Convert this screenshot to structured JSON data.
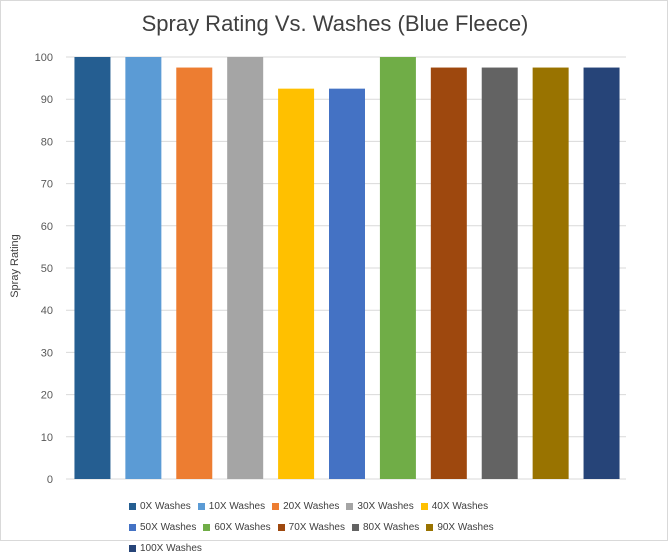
{
  "chart_data": {
    "type": "bar",
    "title": "Spray Rating Vs. Washes (Blue Fleece)",
    "xlabel": "",
    "ylabel": "Spray Rating",
    "ylim": [
      0,
      100
    ],
    "yticks": [
      0,
      10,
      20,
      30,
      40,
      50,
      60,
      70,
      80,
      90,
      100
    ],
    "grid": true,
    "legend_position": "bottom",
    "series": [
      {
        "name": "0X Washes",
        "value": 100,
        "color": "#255e91"
      },
      {
        "name": "10X Washes",
        "value": 100,
        "color": "#5b9bd5"
      },
      {
        "name": "20X Washes",
        "value": 97.5,
        "color": "#ed7d31"
      },
      {
        "name": "30X Washes",
        "value": 100,
        "color": "#a5a5a5"
      },
      {
        "name": "40X Washes",
        "value": 92.5,
        "color": "#ffc000"
      },
      {
        "name": "50X Washes",
        "value": 92.5,
        "color": "#4472c4"
      },
      {
        "name": "60X Washes",
        "value": 100,
        "color": "#70ad47"
      },
      {
        "name": "70X Washes",
        "value": 97.5,
        "color": "#9e480e"
      },
      {
        "name": "80X Washes",
        "value": 97.5,
        "color": "#636363"
      },
      {
        "name": "90X Washes",
        "value": 97.5,
        "color": "#997300"
      },
      {
        "name": "100X Washes",
        "value": 97.5,
        "color": "#264478"
      }
    ]
  }
}
